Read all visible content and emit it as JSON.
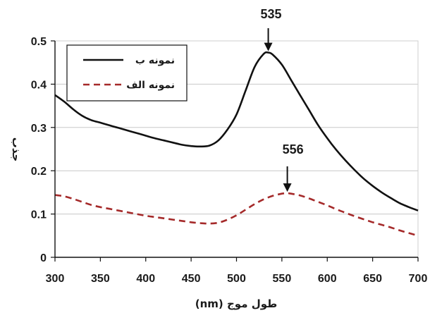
{
  "chart_data": {
    "type": "line",
    "title": "",
    "xlabel": "طول موج (nm)",
    "ylabel": "جذب",
    "xlim": [
      300,
      700
    ],
    "ylim": [
      0,
      0.5
    ],
    "x_ticks": [
      "300",
      "350",
      "400",
      "450",
      "500",
      "550",
      "600",
      "650",
      "700"
    ],
    "y_ticks": [
      "0",
      "0.1",
      "0.2",
      "0.3",
      "0.4",
      "0.5"
    ],
    "grid": "horizontal",
    "legend_position": "top-left",
    "series": [
      {
        "name": "نمونه ب",
        "style": "solid",
        "color": "#111111",
        "x": [
          300,
          310,
          320,
          330,
          340,
          350,
          360,
          370,
          380,
          390,
          400,
          410,
          420,
          430,
          440,
          450,
          460,
          470,
          480,
          490,
          500,
          510,
          520,
          530,
          535,
          540,
          550,
          560,
          570,
          580,
          590,
          600,
          610,
          620,
          630,
          640,
          650,
          660,
          670,
          680,
          690,
          700
        ],
        "y": [
          0.375,
          0.36,
          0.342,
          0.327,
          0.317,
          0.311,
          0.305,
          0.299,
          0.293,
          0.287,
          0.281,
          0.275,
          0.27,
          0.265,
          0.26,
          0.257,
          0.256,
          0.258,
          0.27,
          0.295,
          0.33,
          0.385,
          0.44,
          0.47,
          0.473,
          0.468,
          0.445,
          0.41,
          0.375,
          0.34,
          0.305,
          0.275,
          0.248,
          0.224,
          0.202,
          0.182,
          0.165,
          0.15,
          0.137,
          0.125,
          0.116,
          0.108
        ]
      },
      {
        "name": "نمونه الف",
        "style": "dashed",
        "color": "#a52a2a",
        "x": [
          300,
          310,
          320,
          330,
          340,
          350,
          360,
          370,
          380,
          390,
          400,
          410,
          420,
          430,
          440,
          450,
          460,
          470,
          480,
          490,
          500,
          510,
          520,
          530,
          540,
          550,
          556,
          560,
          570,
          580,
          590,
          600,
          610,
          620,
          630,
          640,
          650,
          660,
          670,
          680,
          690,
          700
        ],
        "y": [
          0.144,
          0.141,
          0.135,
          0.128,
          0.121,
          0.116,
          0.112,
          0.108,
          0.104,
          0.1,
          0.096,
          0.093,
          0.09,
          0.087,
          0.084,
          0.081,
          0.079,
          0.078,
          0.08,
          0.087,
          0.097,
          0.11,
          0.123,
          0.134,
          0.142,
          0.147,
          0.148,
          0.147,
          0.143,
          0.136,
          0.128,
          0.12,
          0.111,
          0.103,
          0.095,
          0.088,
          0.081,
          0.075,
          0.069,
          0.062,
          0.056,
          0.05
        ]
      }
    ],
    "annotations": [
      {
        "label": "535",
        "x": 535,
        "y": 0.473
      },
      {
        "label": "556",
        "x": 556,
        "y": 0.148
      }
    ]
  }
}
